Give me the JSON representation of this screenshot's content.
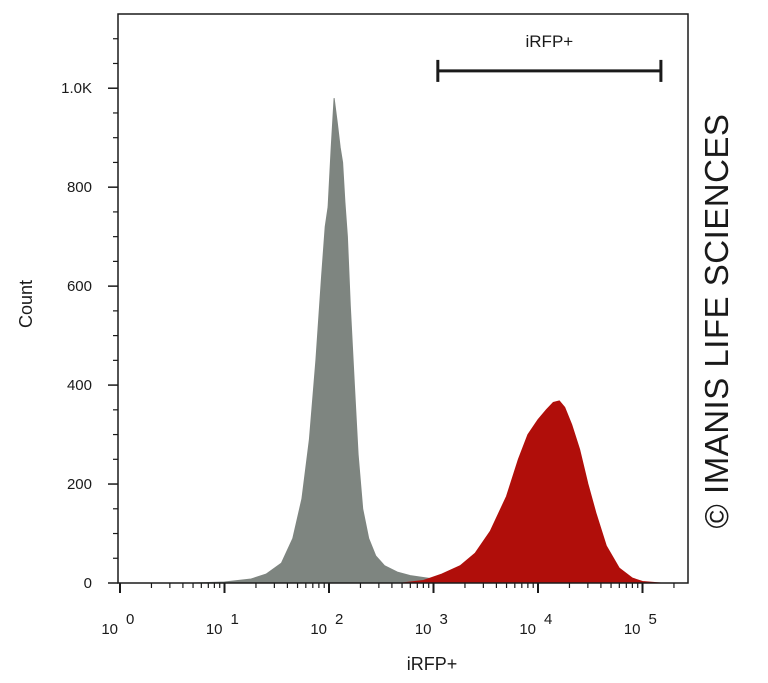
{
  "chart_data": {
    "type": "area",
    "xlabel": "iRFP+",
    "ylabel": "Count",
    "x_scale": "log",
    "xlim": [
      0.5,
      200000
    ],
    "ylim": [
      0,
      1150
    ],
    "x_ticks": [
      {
        "base": "10",
        "exp": "0",
        "value": 1
      },
      {
        "base": "10",
        "exp": "1",
        "value": 10
      },
      {
        "base": "10",
        "exp": "2",
        "value": 100
      },
      {
        "base": "10",
        "exp": "3",
        "value": 1000
      },
      {
        "base": "10",
        "exp": "4",
        "value": 10000
      },
      {
        "base": "10",
        "exp": "5",
        "value": 100000
      }
    ],
    "y_ticks": [
      {
        "label": "0",
        "value": 0
      },
      {
        "label": "200",
        "value": 200
      },
      {
        "label": "400",
        "value": 400
      },
      {
        "label": "600",
        "value": 600
      },
      {
        "label": "800",
        "value": 800
      },
      {
        "label": "1.0K",
        "value": 1000
      }
    ],
    "gate": {
      "label": "iRFP+",
      "x_start": 1100,
      "x_end": 150000,
      "y": 1035
    },
    "series": [
      {
        "color": "#7e8580",
        "points": [
          [
            0.55,
            0
          ],
          [
            1,
            0
          ],
          [
            5,
            0
          ],
          [
            10,
            2
          ],
          [
            18,
            8
          ],
          [
            25,
            18
          ],
          [
            35,
            40
          ],
          [
            45,
            90
          ],
          [
            55,
            170
          ],
          [
            65,
            290
          ],
          [
            75,
            450
          ],
          [
            85,
            620
          ],
          [
            92,
            720
          ],
          [
            98,
            760
          ],
          [
            105,
            880
          ],
          [
            112,
            980
          ],
          [
            120,
            930
          ],
          [
            128,
            880
          ],
          [
            135,
            850
          ],
          [
            142,
            770
          ],
          [
            150,
            700
          ],
          [
            160,
            560
          ],
          [
            175,
            400
          ],
          [
            190,
            260
          ],
          [
            210,
            150
          ],
          [
            240,
            90
          ],
          [
            280,
            55
          ],
          [
            340,
            35
          ],
          [
            450,
            22
          ],
          [
            600,
            15
          ],
          [
            1000,
            8
          ],
          [
            2000,
            2
          ],
          [
            5000,
            0
          ],
          [
            150000,
            0
          ]
        ]
      },
      {
        "color": "#b00e0a",
        "points": [
          [
            500,
            0
          ],
          [
            800,
            5
          ],
          [
            1200,
            18
          ],
          [
            1800,
            35
          ],
          [
            2500,
            60
          ],
          [
            3500,
            105
          ],
          [
            5000,
            175
          ],
          [
            6500,
            250
          ],
          [
            8000,
            300
          ],
          [
            10000,
            330
          ],
          [
            12000,
            350
          ],
          [
            14000,
            365
          ],
          [
            16000,
            368
          ],
          [
            18000,
            355
          ],
          [
            21000,
            320
          ],
          [
            25000,
            270
          ],
          [
            30000,
            200
          ],
          [
            36000,
            140
          ],
          [
            45000,
            75
          ],
          [
            60000,
            30
          ],
          [
            80000,
            10
          ],
          [
            100000,
            3
          ],
          [
            150000,
            0
          ]
        ]
      }
    ]
  },
  "watermark": "© IMANIS LIFE SCIENCES"
}
